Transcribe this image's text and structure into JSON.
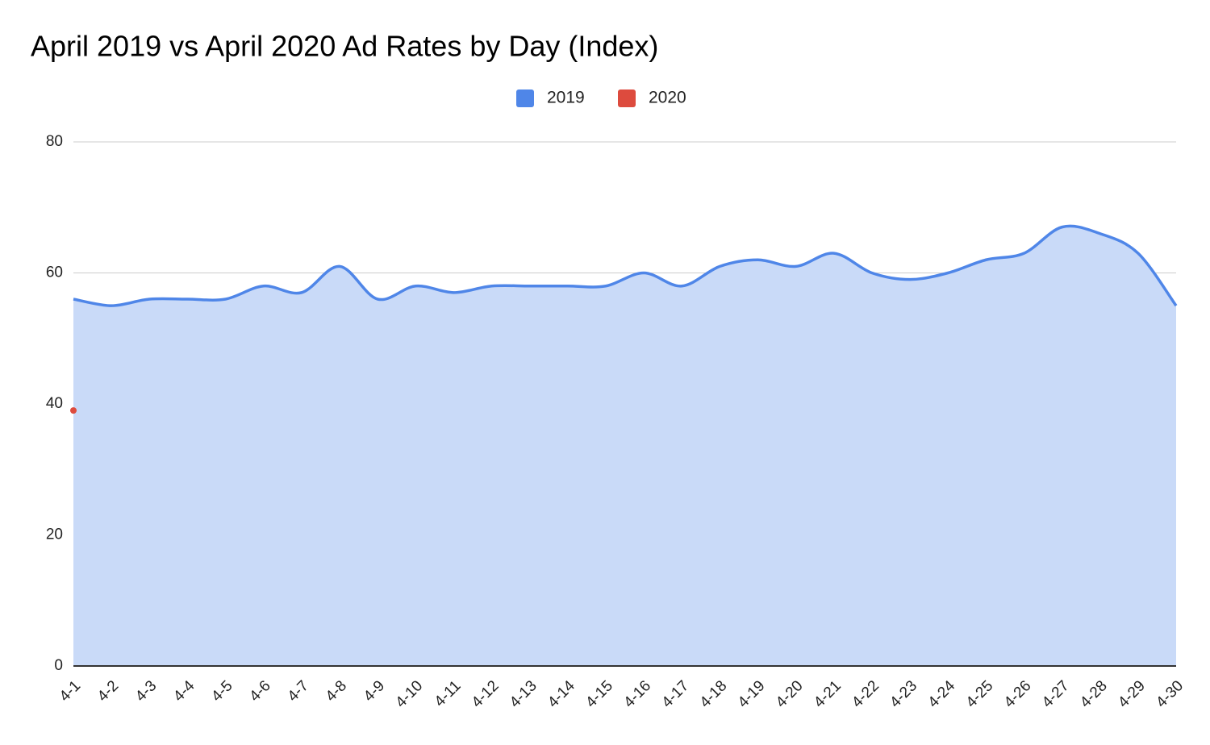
{
  "chart_data": {
    "type": "area",
    "title": "April 2019 vs April 2020 Ad Rates by Day (Index)",
    "categories": [
      "4-1",
      "4-2",
      "4-3",
      "4-4",
      "4-5",
      "4-6",
      "4-7",
      "4-8",
      "4-9",
      "4-10",
      "4-11",
      "4-12",
      "4-13",
      "4-14",
      "4-15",
      "4-16",
      "4-17",
      "4-18",
      "4-19",
      "4-20",
      "4-21",
      "4-22",
      "4-23",
      "4-24",
      "4-25",
      "4-26",
      "4-27",
      "4-28",
      "4-29",
      "4-30"
    ],
    "series": [
      {
        "name": "2019",
        "color": "#4f86e8",
        "fill": "#c9daf8",
        "values": [
          56,
          55,
          56,
          56,
          56,
          58,
          57,
          61,
          56,
          58,
          57,
          58,
          58,
          58,
          58,
          60,
          58,
          61,
          62,
          61,
          63,
          60,
          59,
          60,
          62,
          63,
          67,
          66,
          63,
          55
        ]
      },
      {
        "name": "2020",
        "color": "#dd4b3e",
        "fill": "#f4c7c3",
        "values": [
          39,
          null,
          null,
          null,
          null,
          null,
          null,
          null,
          null,
          null,
          null,
          null,
          null,
          null,
          null,
          null,
          null,
          null,
          null,
          null,
          null,
          null,
          null,
          null,
          null,
          null,
          null,
          null,
          null,
          null
        ]
      }
    ],
    "ylim": [
      0,
      80
    ],
    "yticks": [
      0,
      20,
      40,
      60,
      80
    ],
    "grid": true,
    "legend": "top"
  }
}
